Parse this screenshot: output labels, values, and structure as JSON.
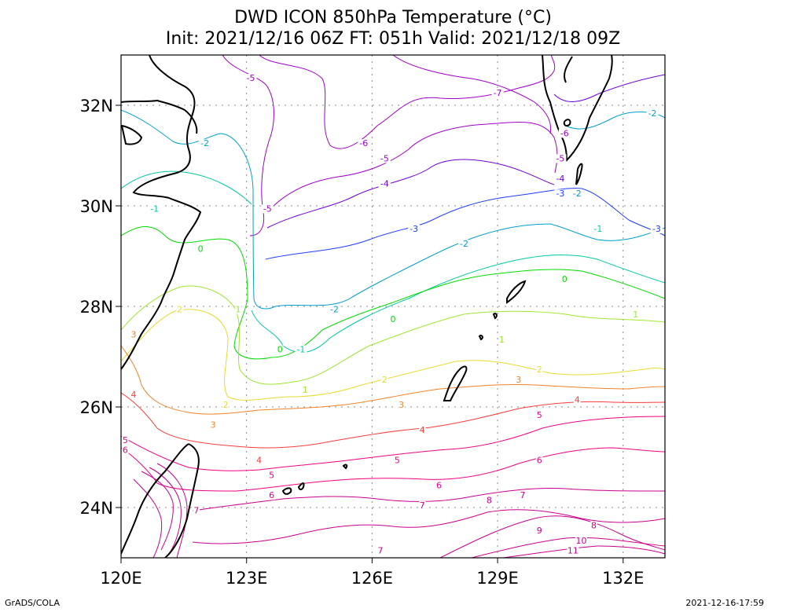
{
  "title": {
    "line1": "DWD ICON 850hPa Temperature (°C)",
    "line2": "Init: 2021/12/16 06Z  FT: 051h  Valid: 2021/12/18 09Z"
  },
  "footer": {
    "left": "GrADS/COLA",
    "right": "2021-12-16-17:59"
  },
  "map": {
    "lon_range": [
      120,
      133
    ],
    "lat_range": [
      23,
      33
    ],
    "x_ticks": [
      {
        "value": 120,
        "label": "120E"
      },
      {
        "value": 123,
        "label": "123E"
      },
      {
        "value": 126,
        "label": "126E"
      },
      {
        "value": 129,
        "label": "129E"
      },
      {
        "value": 132,
        "label": "132E"
      }
    ],
    "y_ticks": [
      {
        "value": 24,
        "label": "24N"
      },
      {
        "value": 26,
        "label": "26N"
      },
      {
        "value": 28,
        "label": "28N"
      },
      {
        "value": 30,
        "label": "30N"
      },
      {
        "value": 32,
        "label": "32N"
      }
    ],
    "grid": "dotted",
    "contour_labels": [
      {
        "t": "-5",
        "lon": 123.1,
        "lat": 32.5,
        "c": "#a000c8"
      },
      {
        "t": "-7",
        "lon": 129.0,
        "lat": 32.2,
        "c": "#a000c8"
      },
      {
        "t": "-6",
        "lon": 125.8,
        "lat": 31.2,
        "c": "#a000c8"
      },
      {
        "t": "-5",
        "lon": 126.3,
        "lat": 30.9,
        "c": "#a000c8"
      },
      {
        "t": "-6",
        "lon": 130.6,
        "lat": 31.4,
        "c": "#a000c8"
      },
      {
        "t": "-5",
        "lon": 130.5,
        "lat": 30.9,
        "c": "#a000c8"
      },
      {
        "t": "-4",
        "lon": 126.3,
        "lat": 30.4,
        "c": "#6e00dc"
      },
      {
        "t": "-4",
        "lon": 130.5,
        "lat": 30.5,
        "c": "#6e00dc"
      },
      {
        "t": "-5",
        "lon": 123.5,
        "lat": 29.9,
        "c": "#a000c8"
      },
      {
        "t": "-3",
        "lon": 127.0,
        "lat": 29.5,
        "c": "#1e3cff"
      },
      {
        "t": "-3",
        "lon": 130.5,
        "lat": 30.2,
        "c": "#1e3cff"
      },
      {
        "t": "-3",
        "lon": 132.8,
        "lat": 29.5,
        "c": "#1e3cff"
      },
      {
        "t": "-2",
        "lon": 122.0,
        "lat": 31.2,
        "c": "#00a0c8"
      },
      {
        "t": "-2",
        "lon": 132.7,
        "lat": 31.8,
        "c": "#00a0c8"
      },
      {
        "t": "-2",
        "lon": 128.2,
        "lat": 29.2,
        "c": "#00a0c8"
      },
      {
        "t": "-2",
        "lon": 130.9,
        "lat": 30.2,
        "c": "#00a0c8"
      },
      {
        "t": "-2",
        "lon": 125.1,
        "lat": 27.9,
        "c": "#00a0c8"
      },
      {
        "t": "-1",
        "lon": 120.8,
        "lat": 29.9,
        "c": "#00c8a0"
      },
      {
        "t": "-1",
        "lon": 131.4,
        "lat": 29.5,
        "c": "#00c8a0"
      },
      {
        "t": "-1",
        "lon": 124.3,
        "lat": 27.1,
        "c": "#00c8a0"
      },
      {
        "t": "0",
        "lon": 121.9,
        "lat": 29.1,
        "c": "#00dc00"
      },
      {
        "t": "0",
        "lon": 130.6,
        "lat": 28.5,
        "c": "#00dc00"
      },
      {
        "t": "0",
        "lon": 126.5,
        "lat": 27.7,
        "c": "#00dc00"
      },
      {
        "t": "0",
        "lon": 123.8,
        "lat": 27.1,
        "c": "#00dc00"
      },
      {
        "t": "1",
        "lon": 122.8,
        "lat": 27.9,
        "c": "#a0e632"
      },
      {
        "t": "1",
        "lon": 132.3,
        "lat": 27.8,
        "c": "#a0e632"
      },
      {
        "t": "1",
        "lon": 129.1,
        "lat": 27.3,
        "c": "#a0e632"
      },
      {
        "t": "1",
        "lon": 124.4,
        "lat": 26.3,
        "c": "#a0e632"
      },
      {
        "t": "2",
        "lon": 121.4,
        "lat": 27.9,
        "c": "#e6dc32"
      },
      {
        "t": "2",
        "lon": 126.3,
        "lat": 26.5,
        "c": "#e6dc32"
      },
      {
        "t": "2",
        "lon": 130.0,
        "lat": 26.7,
        "c": "#e6dc32"
      },
      {
        "t": "2",
        "lon": 122.5,
        "lat": 26.0,
        "c": "#e6dc32"
      },
      {
        "t": "3",
        "lon": 120.3,
        "lat": 27.4,
        "c": "#f08228"
      },
      {
        "t": "3",
        "lon": 126.7,
        "lat": 26.0,
        "c": "#f08228"
      },
      {
        "t": "3",
        "lon": 129.5,
        "lat": 26.5,
        "c": "#f08228"
      },
      {
        "t": "3",
        "lon": 122.2,
        "lat": 25.6,
        "c": "#f08228"
      },
      {
        "t": "4",
        "lon": 120.3,
        "lat": 26.2,
        "c": "#fa3c3c"
      },
      {
        "t": "4",
        "lon": 127.2,
        "lat": 25.5,
        "c": "#fa3c3c"
      },
      {
        "t": "4",
        "lon": 130.9,
        "lat": 26.1,
        "c": "#fa3c3c"
      },
      {
        "t": "4",
        "lon": 123.3,
        "lat": 24.9,
        "c": "#fa3c3c"
      },
      {
        "t": "5",
        "lon": 120.1,
        "lat": 25.3,
        "c": "#f00082"
      },
      {
        "t": "5",
        "lon": 130.0,
        "lat": 25.8,
        "c": "#f00082"
      },
      {
        "t": "5",
        "lon": 126.6,
        "lat": 24.9,
        "c": "#f00082"
      },
      {
        "t": "5",
        "lon": 123.6,
        "lat": 24.6,
        "c": "#f00082"
      },
      {
        "t": "6",
        "lon": 120.1,
        "lat": 25.1,
        "c": "#f00082"
      },
      {
        "t": "6",
        "lon": 130.0,
        "lat": 24.9,
        "c": "#f00082"
      },
      {
        "t": "6",
        "lon": 127.6,
        "lat": 24.4,
        "c": "#f00082"
      },
      {
        "t": "6",
        "lon": 123.6,
        "lat": 24.2,
        "c": "#f00082"
      },
      {
        "t": "7",
        "lon": 121.8,
        "lat": 23.9,
        "c": "#c8008c"
      },
      {
        "t": "7",
        "lon": 127.2,
        "lat": 24.0,
        "c": "#c8008c"
      },
      {
        "t": "7",
        "lon": 129.6,
        "lat": 24.2,
        "c": "#c8008c"
      },
      {
        "t": "7",
        "lon": 126.2,
        "lat": 23.1,
        "c": "#c8008c"
      },
      {
        "t": "8",
        "lon": 128.8,
        "lat": 24.1,
        "c": "#c8008c"
      },
      {
        "t": "8",
        "lon": 131.3,
        "lat": 23.6,
        "c": "#c8008c"
      },
      {
        "t": "9",
        "lon": 130.0,
        "lat": 23.5,
        "c": "#c8008c"
      },
      {
        "t": "10",
        "lon": 131.0,
        "lat": 23.3,
        "c": "#c8008c"
      },
      {
        "t": "11",
        "lon": 130.8,
        "lat": 23.1,
        "c": "#c8008c"
      }
    ]
  }
}
